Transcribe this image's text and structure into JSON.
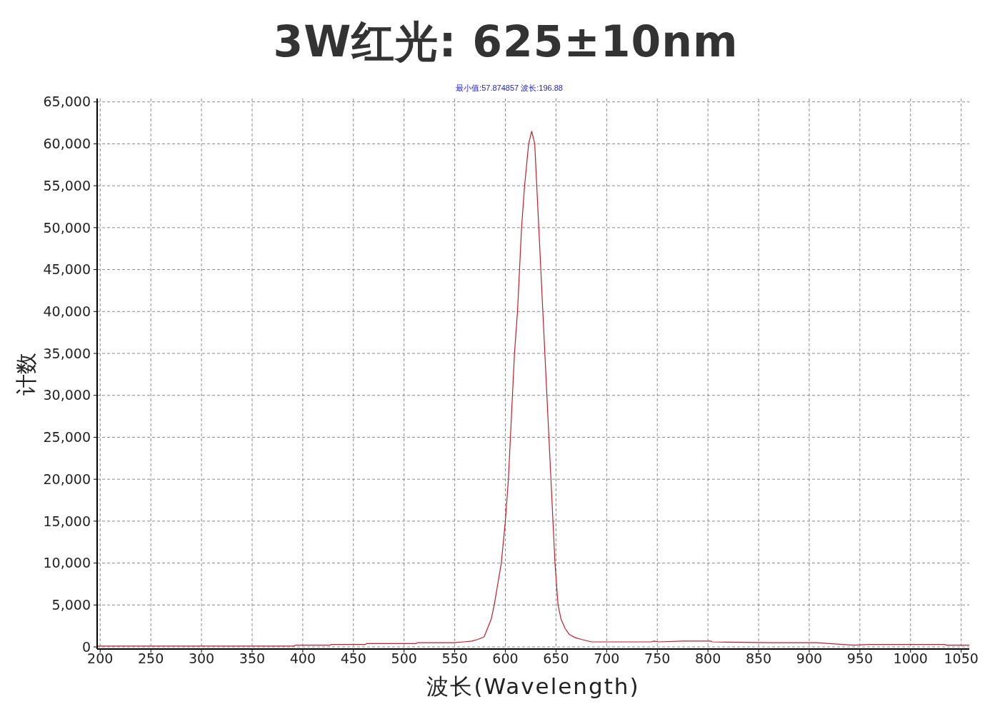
{
  "chart_data": {
    "type": "line",
    "title": "3W红光: 625±10nm",
    "annotations": [
      "最小值:57.874857 波长:196.88"
    ],
    "xlabel": "波长(Wavelength)",
    "ylabel": "计数",
    "x": [
      197,
      391,
      393,
      427,
      428,
      462,
      463,
      512,
      513,
      549,
      559,
      567,
      573,
      579,
      582,
      586,
      589,
      596,
      600,
      603,
      605,
      607,
      609,
      612,
      614,
      616,
      619,
      623,
      626,
      629,
      631,
      633,
      635,
      637,
      639,
      641,
      643,
      645,
      647,
      649,
      652,
      655,
      659,
      663,
      669,
      675,
      685,
      700,
      744,
      747,
      751,
      775,
      803,
      804,
      864,
      907,
      933,
      944,
      959,
      1034,
      1035,
      1058
    ],
    "values": [
      100,
      100,
      200,
      200,
      300,
      300,
      400,
      400,
      500,
      500,
      600,
      700,
      900,
      1200,
      2100,
      3300,
      5000,
      10000,
      15000,
      20000,
      25000,
      30000,
      35000,
      40000,
      45000,
      50000,
      55000,
      60000,
      61500,
      60000,
      55000,
      50000,
      45000,
      40000,
      35000,
      30000,
      25000,
      20000,
      15000,
      10000,
      5000,
      3300,
      2200,
      1500,
      1100,
      900,
      600,
      600,
      600,
      700,
      600,
      700,
      700,
      600,
      500,
      500,
      300,
      200,
      300,
      300,
      200,
      200
    ],
    "color": "#c41e2e",
    "xlim": [
      197,
      1058
    ],
    "ylim": [
      -250,
      65400
    ],
    "xticks": [
      200,
      250,
      300,
      350,
      400,
      450,
      500,
      550,
      600,
      650,
      700,
      750,
      800,
      850,
      900,
      950,
      1000,
      1050
    ],
    "yticks": [
      0,
      {
        "value": 5000,
        "label": "5,000"
      },
      {
        "value": 10000,
        "label": "10,000"
      },
      {
        "value": 15000,
        "label": "15,000"
      },
      {
        "value": 20000,
        "label": "20,000"
      },
      {
        "value": 25000,
        "label": "25,000"
      },
      {
        "value": 30000,
        "label": "30,000"
      },
      {
        "value": 35000,
        "label": "35,000"
      },
      {
        "value": 40000,
        "label": "40,000"
      },
      {
        "value": 45000,
        "label": "45,000"
      },
      {
        "value": 50000,
        "label": "50,000"
      },
      {
        "value": 55000,
        "label": "55,000"
      },
      {
        "value": 60000,
        "label": "60,000"
      },
      {
        "value": 65000,
        "label": "65,000"
      }
    ],
    "grid": true
  }
}
